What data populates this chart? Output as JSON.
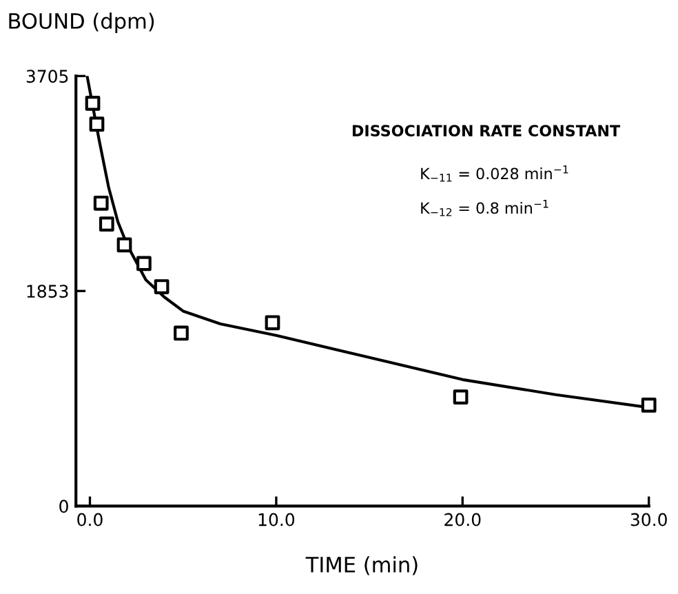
{
  "chart_data": {
    "type": "scatter",
    "xlabel": "TIME (min)",
    "ylabel": "BOUND (dpm)",
    "annotations": [
      "DISSOCIATION RATE CONSTANT",
      "K$_{−11}$ = 0.028 min$^{−1}$",
      "K$_{−12}$ = 0.8 min$^{−1}$"
    ],
    "series": [
      {
        "color": "#000000",
        "marker": "square",
        "x": [
          0.15,
          0.37,
          0.6,
          0.9,
          1.85,
          2.9,
          3.85,
          4.9,
          9.8,
          19.9,
          30
        ],
        "values": [
          3470,
          3290,
          2610,
          2430,
          2250,
          2090,
          1890,
          1490,
          1580,
          940,
          870
        ]
      },
      {
        "type": "line",
        "color": "#000000",
        "marker": "none",
        "line_style": "solid",
        "x": [
          -0.15,
          0.5,
          1,
          1.5,
          2,
          3,
          4,
          5,
          7,
          10,
          15,
          20,
          25,
          30
        ],
        "values": [
          3705,
          3150,
          2750,
          2450,
          2250,
          1950,
          1800,
          1680,
          1570,
          1470,
          1280,
          1090,
          960,
          850
        ]
      }
    ],
    "xlim": [
      -0.75,
      30
    ],
    "ylim": [
      0,
      3705
    ],
    "xticks": [
      {
        "value": 0,
        "label": "0.0"
      },
      {
        "value": 10,
        "label": "10.0"
      },
      {
        "value": 20,
        "label": "20.0"
      },
      {
        "value": 30,
        "label": "30.0"
      }
    ],
    "yticks": [
      0,
      1853,
      3705
    ],
    "grid": false,
    "legend": false
  }
}
